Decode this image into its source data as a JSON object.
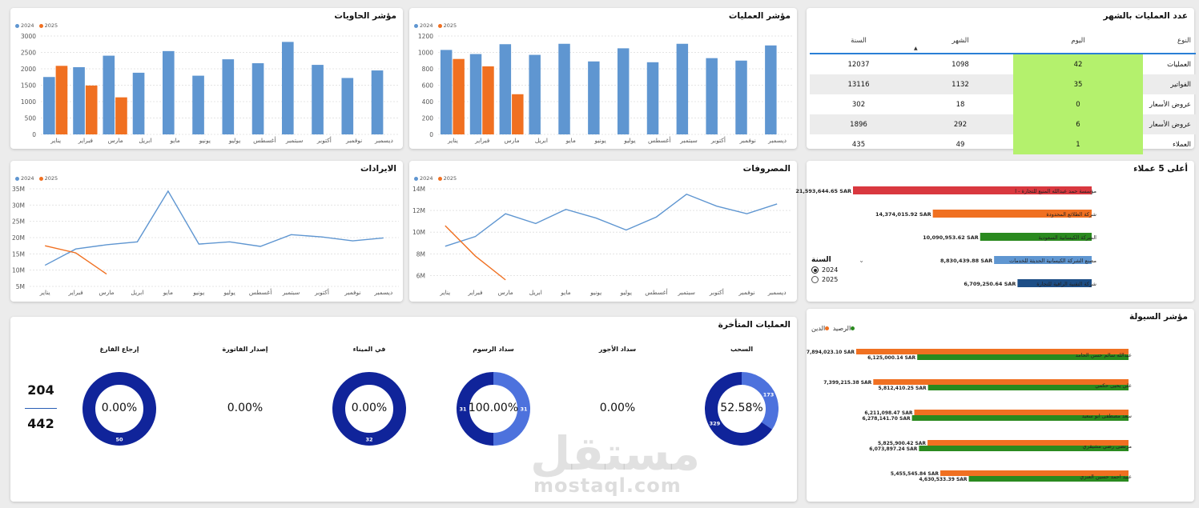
{
  "months": [
    "يناير",
    "فبراير",
    "مارس",
    "ابريل",
    "مايو",
    "يونيو",
    "يوليو",
    "أغسطس",
    "سبتمبر",
    "أكتوبر",
    "نوفمبر",
    "ديسمبر"
  ],
  "legend": {
    "y2024": "2024",
    "y2025": "2025"
  },
  "colors": {
    "blue": "#5f96d1",
    "orange": "#f07021",
    "green": "#2a8a1f",
    "red": "#d9383f",
    "navy": "#10249a",
    "lightblue": "#4d72dd"
  },
  "containers": {
    "title": "مؤشر الحاويات",
    "chart_data": {
      "type": "bar",
      "ylim": [
        0,
        3000
      ],
      "yticks": [
        "0",
        "500",
        "1000",
        "1500",
        "2000",
        "2500",
        "3000"
      ],
      "series": [
        {
          "name": "2024",
          "values": [
            1750,
            2050,
            2400,
            1880,
            2540,
            1790,
            2290,
            2170,
            2820,
            2120,
            1720,
            1950
          ]
        },
        {
          "name": "2025",
          "values": [
            2090,
            1490,
            1130,
            null,
            null,
            null,
            null,
            null,
            null,
            null,
            null,
            null
          ]
        }
      ]
    }
  },
  "operations": {
    "title": "مؤشر العمليات",
    "chart_data": {
      "type": "bar",
      "ylim": [
        0,
        1200
      ],
      "yticks": [
        "0",
        "200",
        "400",
        "600",
        "800",
        "1000",
        "1200"
      ],
      "series": [
        {
          "name": "2024",
          "values": [
            1030,
            980,
            1100,
            970,
            1105,
            890,
            1050,
            880,
            1105,
            930,
            900,
            1085
          ]
        },
        {
          "name": "2025",
          "values": [
            920,
            830,
            490,
            null,
            null,
            null,
            null,
            null,
            null,
            null,
            null,
            null
          ]
        }
      ]
    }
  },
  "monthly_ops": {
    "title": "عدد العمليات بالشهر",
    "headers": {
      "type": "النوع",
      "day": "اليوم",
      "month": "الشهر",
      "year": "السنة"
    },
    "rows": [
      {
        "type": "العمليات",
        "day": "42",
        "month": "1098",
        "year": "12037"
      },
      {
        "type": "الفواتير",
        "day": "35",
        "month": "1132",
        "year": "13116"
      },
      {
        "type": "عروض الأسعار",
        "day": "0",
        "month": "18",
        "year": "302"
      },
      {
        "type": "عروض الأسعار",
        "day": "6",
        "month": "292",
        "year": "1896"
      },
      {
        "type": "العملاء",
        "day": "1",
        "month": "49",
        "year": "435"
      }
    ]
  },
  "revenue": {
    "title": "الايرادات",
    "chart_data": {
      "type": "line",
      "ylim": [
        5,
        35
      ],
      "yticks": [
        "5M",
        "10M",
        "15M",
        "20M",
        "25M",
        "30M",
        "35M"
      ],
      "series": [
        {
          "name": "2024",
          "values": [
            11.5,
            16.5,
            17.8,
            18.7,
            34.3,
            18.0,
            18.7,
            17.3,
            20.9,
            20.2,
            19.0,
            19.9
          ]
        },
        {
          "name": "2025",
          "values": [
            17.5,
            15.3,
            8.8,
            null,
            null,
            null,
            null,
            null,
            null,
            null,
            null,
            null
          ]
        }
      ]
    }
  },
  "expenses": {
    "title": "المصروفات",
    "chart_data": {
      "type": "line",
      "ylim": [
        5,
        14
      ],
      "yticks": [
        "6M",
        "8M",
        "10M",
        "12M",
        "14M"
      ],
      "series": [
        {
          "name": "2024",
          "values": [
            8.7,
            9.6,
            11.7,
            10.8,
            12.1,
            11.3,
            10.2,
            11.4,
            13.5,
            12.4,
            11.7,
            12.6
          ]
        },
        {
          "name": "2025",
          "values": [
            10.6,
            7.8,
            5.6,
            null,
            null,
            null,
            null,
            null,
            null,
            null,
            null,
            null
          ]
        }
      ]
    }
  },
  "top_customers": {
    "title": "أعلى 5 عملاء",
    "year_filter": {
      "label": "السنة",
      "options": [
        "2024",
        "2025"
      ],
      "selected": "2024"
    },
    "chart_data": {
      "type": "bar",
      "orientation": "horizontal",
      "max": 21593644.65,
      "items": [
        {
          "name": "مؤسسة حمد عبدالله المنيع للتجارة - ا",
          "value": 21593644.65,
          "label": "21,593,644.65 SAR",
          "color": "#d9383f"
        },
        {
          "name": "شركة الطلائع المحدودة",
          "value": 14374015.92,
          "label": "14,374,015.92 SAR",
          "color": "#f07021"
        },
        {
          "name": "الشركة الكيسانية السعودية",
          "value": 10090953.62,
          "label": "10,090,953.62 SAR",
          "color": "#2a8a1f"
        },
        {
          "name": "مصنع الشركة الكيسانية الحديثة للخدمات",
          "value": 8830439.88,
          "label": "8,830,439.88 SAR",
          "color": "#5f96d1"
        },
        {
          "name": "شركة التقنية الراقية للتجارة",
          "value": 6709250.64,
          "label": "6,709,250.64 SAR",
          "color": "#1d4e86"
        }
      ]
    }
  },
  "late_ops": {
    "title": "العمليات المتأخرة",
    "card": {
      "top": "204",
      "bottom": "442"
    },
    "donuts": [
      {
        "label": "إرجاع الفارغ",
        "pct": "0.00%",
        "type": "donut",
        "segments": [
          {
            "value": 50,
            "color": "#10249a",
            "label": "50"
          }
        ]
      },
      {
        "label": "إصدار الفاتورة",
        "pct": "0.00%",
        "type": "text"
      },
      {
        "label": "في الميناء",
        "pct": "0.00%",
        "type": "donut",
        "segments": [
          {
            "value": 32,
            "color": "#10249a",
            "label": "32"
          }
        ]
      },
      {
        "label": "سداد الرسوم",
        "pct": "100.00%",
        "type": "donut",
        "segments": [
          {
            "value": 31,
            "color": "#4d72dd",
            "label": "31"
          },
          {
            "value": 31,
            "color": "#10249a",
            "label": "31"
          }
        ]
      },
      {
        "label": "سداد الأجور",
        "pct": "0.00%",
        "type": "text"
      },
      {
        "label": "السحب",
        "pct": "52.58%",
        "type": "donut",
        "segments": [
          {
            "value": 173,
            "color": "#4d72dd",
            "label": "173"
          },
          {
            "value": 329,
            "color": "#10249a",
            "label": "329"
          }
        ]
      }
    ]
  },
  "liquidity": {
    "title": "مؤشر السيولة",
    "legend": {
      "balance": "الرصيد",
      "debt": "الدين"
    },
    "chart_data": {
      "type": "bar",
      "orientation": "horizontal",
      "max": 7894023.1,
      "items": [
        {
          "name": "عبدالله سالم حسن الحامد",
          "debt": 7894023.1,
          "debt_label": "7,894,023.10 SAR",
          "balance": 6125000.14,
          "balance_label": "6,125,000.14 SAR"
        },
        {
          "name": "علي يحيى حكمي",
          "debt": 7399215.38,
          "debt_label": "7,399,215.38 SAR",
          "balance": 5812410.25,
          "balance_label": "5,812,410.25 SAR"
        },
        {
          "name": "سعد مصطفى ابو سعيد",
          "debt": 6211098.47,
          "debt_label": "6,211,098.47 SAR",
          "balance": 6278141.7,
          "balance_label": "6,278,141.70 SAR"
        },
        {
          "name": "مرتضى رضي مشيقري",
          "debt": 5825900.42,
          "debt_label": "5,825,900.42 SAR",
          "balance": 6073897.24,
          "balance_label": "6,073,897.24 SAR"
        },
        {
          "name": "عبيد احمد حسين العنزي",
          "debt": 5455545.84,
          "debt_label": "5,455,545.84 SAR",
          "balance": 4630533.39,
          "balance_label": "4,630,533.39 SAR"
        }
      ]
    }
  },
  "watermark": {
    "arabic": "مستقل",
    "latin": "mostaql.com"
  }
}
